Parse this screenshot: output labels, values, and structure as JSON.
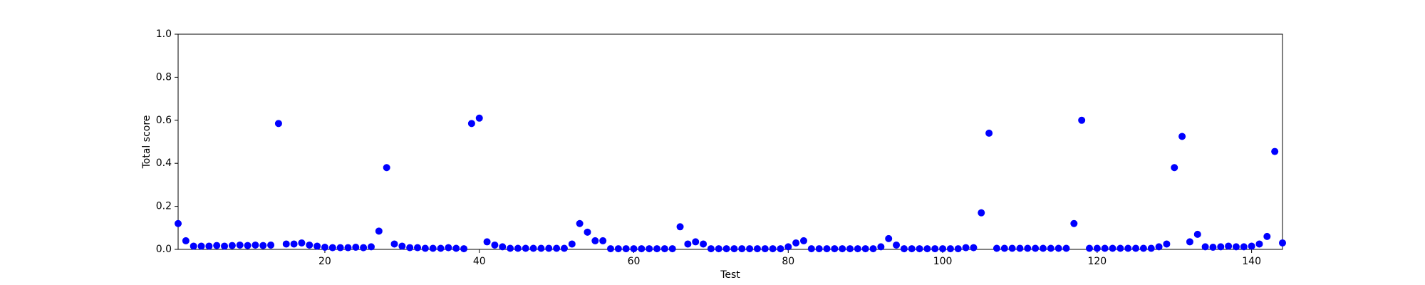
{
  "chart_data": {
    "type": "scatter",
    "x_label": "Test",
    "y_label": "Total score",
    "x": [
      1,
      2,
      3,
      4,
      5,
      6,
      7,
      8,
      9,
      10,
      11,
      12,
      13,
      14,
      15,
      16,
      17,
      18,
      19,
      20,
      21,
      22,
      23,
      24,
      25,
      26,
      27,
      28,
      29,
      30,
      31,
      32,
      33,
      34,
      35,
      36,
      37,
      38,
      39,
      40,
      41,
      42,
      43,
      44,
      45,
      46,
      47,
      48,
      49,
      50,
      51,
      52,
      53,
      54,
      55,
      56,
      57,
      58,
      59,
      60,
      61,
      62,
      63,
      64,
      65,
      66,
      67,
      68,
      69,
      70,
      71,
      72,
      73,
      74,
      75,
      76,
      77,
      78,
      79,
      80,
      81,
      82,
      83,
      84,
      85,
      86,
      87,
      88,
      89,
      90,
      91,
      92,
      93,
      94,
      95,
      96,
      97,
      98,
      99,
      100,
      101,
      102,
      103,
      104,
      105,
      106,
      107,
      108,
      109,
      110,
      111,
      112,
      113,
      114,
      115,
      116,
      117,
      118,
      119,
      120,
      121,
      122,
      123,
      124,
      125,
      126,
      127,
      128,
      129,
      130,
      131,
      132,
      133,
      134,
      135,
      136,
      137,
      138,
      139,
      140,
      141,
      142,
      143,
      144
    ],
    "values": [
      0.12,
      0.04,
      0.015,
      0.015,
      0.015,
      0.018,
      0.015,
      0.018,
      0.02,
      0.018,
      0.02,
      0.018,
      0.02,
      0.585,
      0.025,
      0.025,
      0.03,
      0.02,
      0.015,
      0.01,
      0.008,
      0.008,
      0.008,
      0.01,
      0.008,
      0.012,
      0.085,
      0.38,
      0.025,
      0.015,
      0.008,
      0.008,
      0.005,
      0.005,
      0.005,
      0.008,
      0.005,
      0.003,
      0.585,
      0.61,
      0.035,
      0.02,
      0.012,
      0.005,
      0.005,
      0.005,
      0.005,
      0.005,
      0.005,
      0.005,
      0.005,
      0.025,
      0.12,
      0.08,
      0.04,
      0.04,
      0.003,
      0.003,
      0.003,
      0.003,
      0.003,
      0.003,
      0.003,
      0.003,
      0.003,
      0.105,
      0.025,
      0.035,
      0.025,
      0.003,
      0.003,
      0.003,
      0.003,
      0.003,
      0.003,
      0.003,
      0.003,
      0.003,
      0.003,
      0.012,
      0.03,
      0.04,
      0.003,
      0.003,
      0.003,
      0.003,
      0.003,
      0.003,
      0.003,
      0.003,
      0.003,
      0.012,
      0.05,
      0.02,
      0.003,
      0.003,
      0.003,
      0.003,
      0.003,
      0.003,
      0.003,
      0.003,
      0.008,
      0.008,
      0.17,
      0.54,
      0.005,
      0.005,
      0.005,
      0.005,
      0.005,
      0.005,
      0.005,
      0.005,
      0.005,
      0.005,
      0.12,
      0.6,
      0.005,
      0.005,
      0.005,
      0.005,
      0.005,
      0.005,
      0.005,
      0.005,
      0.005,
      0.012,
      0.025,
      0.38,
      0.525,
      0.035,
      0.07,
      0.012,
      0.01,
      0.012,
      0.015,
      0.012,
      0.012,
      0.015,
      0.025,
      0.06,
      0.455,
      0.03
    ],
    "color": "#0000ff",
    "xlim": [
      1,
      144
    ],
    "ylim": [
      0,
      1
    ],
    "xticks": [
      20,
      40,
      60,
      80,
      100,
      120,
      140
    ],
    "yticks": [
      {
        "value": 0,
        "label": "0.0"
      },
      {
        "value": 0.2,
        "label": "0.2"
      },
      {
        "value": 0.4,
        "label": "0.4"
      },
      {
        "value": 0.6,
        "label": "0.6"
      },
      {
        "value": 0.8,
        "label": "0.8"
      },
      {
        "value": 1,
        "label": "1.0"
      }
    ],
    "grid": false
  }
}
